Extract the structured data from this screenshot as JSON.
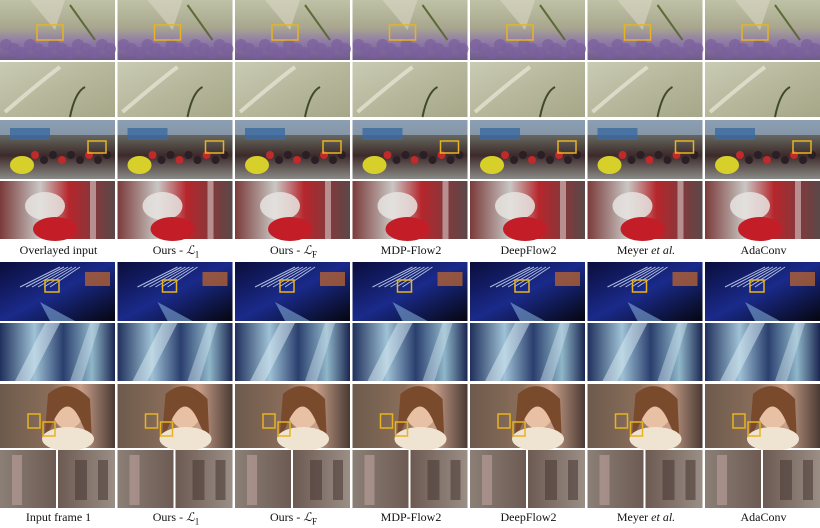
{
  "figure": {
    "top_captions": [
      {
        "text": "Overlayed input"
      },
      {
        "text": "Ours - ",
        "math": "ℒ",
        "sub": "1"
      },
      {
        "text": "Ours - ",
        "math": "ℒ",
        "sub": "F"
      },
      {
        "text": "MDP-Flow2"
      },
      {
        "text": "DeepFlow2"
      },
      {
        "text": "Meyer ",
        "em": "et al."
      },
      {
        "text": "AdaConv"
      }
    ],
    "bottom_captions": [
      {
        "text": "Input frame 1"
      },
      {
        "text": "Ours - ",
        "math": "ℒ",
        "sub": "1"
      },
      {
        "text": "Ours - ",
        "math": "ℒ",
        "sub": "F"
      },
      {
        "text": "MDP-Flow2"
      },
      {
        "text": "DeepFlow2"
      },
      {
        "text": "Meyer ",
        "em": "et al."
      },
      {
        "text": "AdaConv"
      }
    ],
    "highlight_color": "#e8b321"
  }
}
